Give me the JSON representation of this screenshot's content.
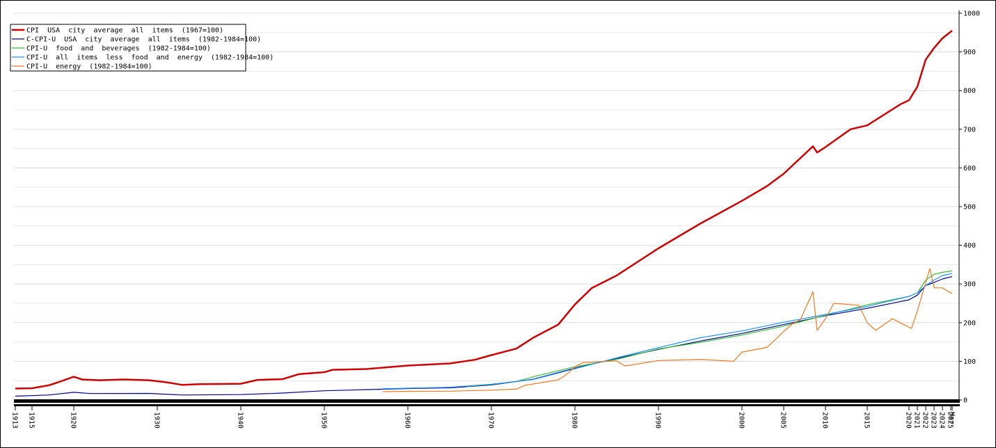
{
  "chart_data": {
    "type": "line",
    "series": [
      {
        "name": "CPI  USA  city  average  all  items  (1967=100)",
        "color": "#cc0000",
        "x": [
          1913,
          1915,
          1917,
          1918,
          1920,
          1921,
          1923,
          1926,
          1929,
          1931,
          1933,
          1935,
          1940,
          1942,
          1945,
          1947,
          1950,
          1951,
          1955,
          1960,
          1965,
          1968,
          1970,
          1973,
          1975,
          1978,
          1980,
          1982,
          1985,
          1990,
          1995,
          2000,
          2003,
          2005,
          2008.5,
          2009,
          2010,
          2013,
          2015,
          2019,
          2020,
          2021,
          2022,
          2023,
          2024,
          2025.17
        ],
        "values": [
          29.7,
          30.4,
          38,
          45,
          60,
          53,
          51,
          53,
          51,
          46,
          39,
          41,
          42,
          52,
          54,
          67,
          72,
          78,
          80,
          89,
          94.5,
          104,
          116,
          133,
          161,
          195,
          247,
          289,
          322,
          392,
          456,
          515,
          553,
          585,
          656,
          640,
          654,
          700,
          710,
          765,
          775,
          810,
          880,
          910,
          935,
          955
        ]
      },
      {
        "name": "C-CPI-U  USA  city  average  all  items  (1982-1984=100)",
        "color": "#00008b",
        "x": [
          1913,
          1917,
          1920,
          1922,
          1929,
          1933,
          1940,
          1945,
          1950,
          1955,
          1960,
          1965,
          1970,
          1975,
          1980,
          1985,
          1990,
          1995,
          2000,
          2005,
          2010,
          2015,
          2020,
          2021,
          2022,
          2023,
          2024,
          2025.17
        ],
        "values": [
          9.9,
          13,
          20,
          16.8,
          17.1,
          13,
          14,
          18,
          24,
          26.8,
          29.6,
          31.5,
          38.8,
          53.8,
          82.4,
          107.6,
          130.7,
          152.4,
          172.2,
          195,
          218,
          237,
          259,
          271,
          296,
          304,
          313,
          319
        ]
      },
      {
        "name": "CPI-U  food  and  beverages  (1982-1984=100)",
        "color": "#33bb33",
        "x": [
          1967,
          1970,
          1973,
          1975,
          1980,
          1985,
          1990,
          1995,
          2000,
          2005,
          2010,
          2015,
          2020,
          2021,
          2022,
          2023,
          2024,
          2025.17
        ],
        "values": [
          35,
          40,
          48,
          60,
          86,
          105,
          132,
          149,
          168,
          191,
          219,
          246,
          268,
          277,
          310,
          325,
          330,
          334
        ]
      },
      {
        "name": "CPI-U  all  items  less  food  and  energy  (1982-1984=100)",
        "color": "#1e90ff",
        "x": [
          1957,
          1960,
          1965,
          1970,
          1975,
          1980,
          1985,
          1990,
          1995,
          2000,
          2005,
          2010,
          2015,
          2020,
          2021,
          2022,
          2023,
          2024,
          2025.17
        ],
        "values": [
          28.9,
          30.6,
          33,
          40.8,
          53,
          80.8,
          109,
          135.5,
          161,
          178.6,
          201,
          221,
          242,
          268,
          277,
          296,
          310,
          322,
          327
        ]
      },
      {
        "name": "CPI-U  energy  (1982-1984=100)",
        "color": "#ee7722",
        "x": [
          1957,
          1960,
          1965,
          1970,
          1973,
          1974,
          1978,
          1979,
          1980,
          1981,
          1985,
          1986,
          1990,
          1995,
          1999,
          2000,
          2003,
          2005,
          2006,
          2007,
          2008.5,
          2009,
          2010,
          2011,
          2014,
          2015,
          2016,
          2018,
          2020.3,
          2021,
          2022.5,
          2023,
          2024,
          2025.17
        ],
        "values": [
          21.5,
          22.4,
          22.9,
          25.5,
          28,
          38,
          52,
          66,
          86,
          97,
          101,
          88,
          102,
          105,
          100,
          124,
          136,
          177,
          196,
          208,
          280,
          180,
          210,
          250,
          245,
          200,
          180,
          210,
          185,
          230,
          340,
          290,
          290,
          275
        ]
      }
    ],
    "ylim": [
      0,
      1000
    ],
    "yticks": [
      0,
      100,
      200,
      300,
      400,
      500,
      600,
      700,
      800,
      900,
      1000
    ],
    "xlim": [
      1913,
      2025.5
    ],
    "xticks": [
      1913,
      1915,
      1920,
      1930,
      1940,
      1950,
      1960,
      1970,
      1980,
      1990,
      2000,
      2005,
      2010,
      2015,
      2020,
      2021,
      2022,
      2023,
      2024,
      2025,
      {
        "value": 2025.17,
        "label": "Mar"
      }
    ],
    "grid": true,
    "legend": "upper left"
  }
}
